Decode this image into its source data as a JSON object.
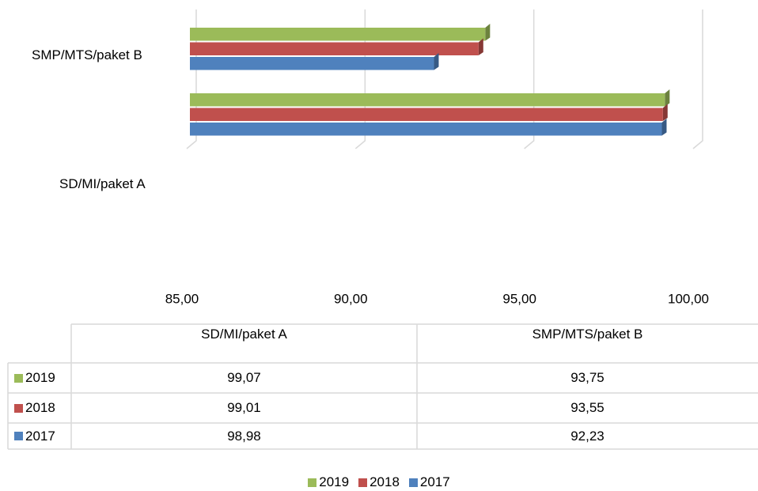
{
  "chart_data": {
    "type": "bar",
    "orientation": "horizontal",
    "categories": [
      "SD/MI/paket A",
      "SMP/MTS/paket B"
    ],
    "series": [
      {
        "name": "2019",
        "color": "#9bbb59",
        "values": [
          99.07,
          93.75
        ],
        "value_labels": [
          "99,07",
          "93,75"
        ]
      },
      {
        "name": "2018",
        "color": "#c0504d",
        "values": [
          99.01,
          93.55
        ],
        "value_labels": [
          "99,01",
          "93,55"
        ]
      },
      {
        "name": "2017",
        "color": "#4f81bd",
        "values": [
          98.98,
          92.23
        ],
        "value_labels": [
          "98,98",
          "92,23"
        ]
      }
    ],
    "xlim": [
      85,
      100
    ],
    "xticks": [
      {
        "value": 85,
        "label": "85,00"
      },
      {
        "value": 90,
        "label": "90,00"
      },
      {
        "value": 95,
        "label": "95,00"
      },
      {
        "value": 100,
        "label": "100,00"
      }
    ],
    "grid": true,
    "legend": "bottom",
    "data_table": true
  }
}
